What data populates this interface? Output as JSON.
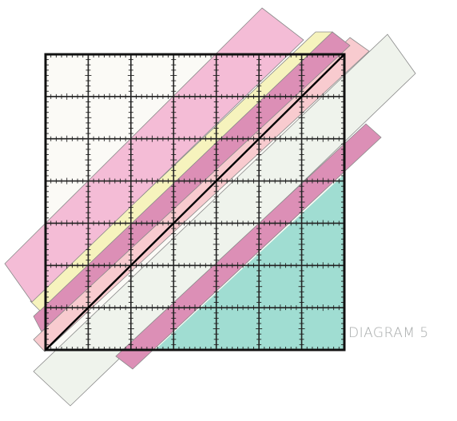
{
  "diagram": {
    "caption": "DIAGRAM 5",
    "grid": {
      "columns": 7,
      "rows": 7,
      "ticks_per_cell": 8
    },
    "colors": {
      "pink_strip": "#f4bcd6",
      "yellow_strip": "#f6f3bd",
      "mauve_strip": "#dc8fb6",
      "light_pink_strip": "#f8cbcf",
      "pale_green_strip": "#eff3ec",
      "teal_region": "#a0ddd2",
      "background_cell": "#fbfaf6",
      "grid_line": "#222222",
      "diagonal_line": "#000000",
      "caption_text": "#a7aaaa"
    },
    "strips": [
      {
        "name": "pink-strip"
      },
      {
        "name": "yellow-strip"
      },
      {
        "name": "mauve-strip"
      },
      {
        "name": "light-pink-strip"
      },
      {
        "name": "pale-green-strip"
      }
    ]
  }
}
